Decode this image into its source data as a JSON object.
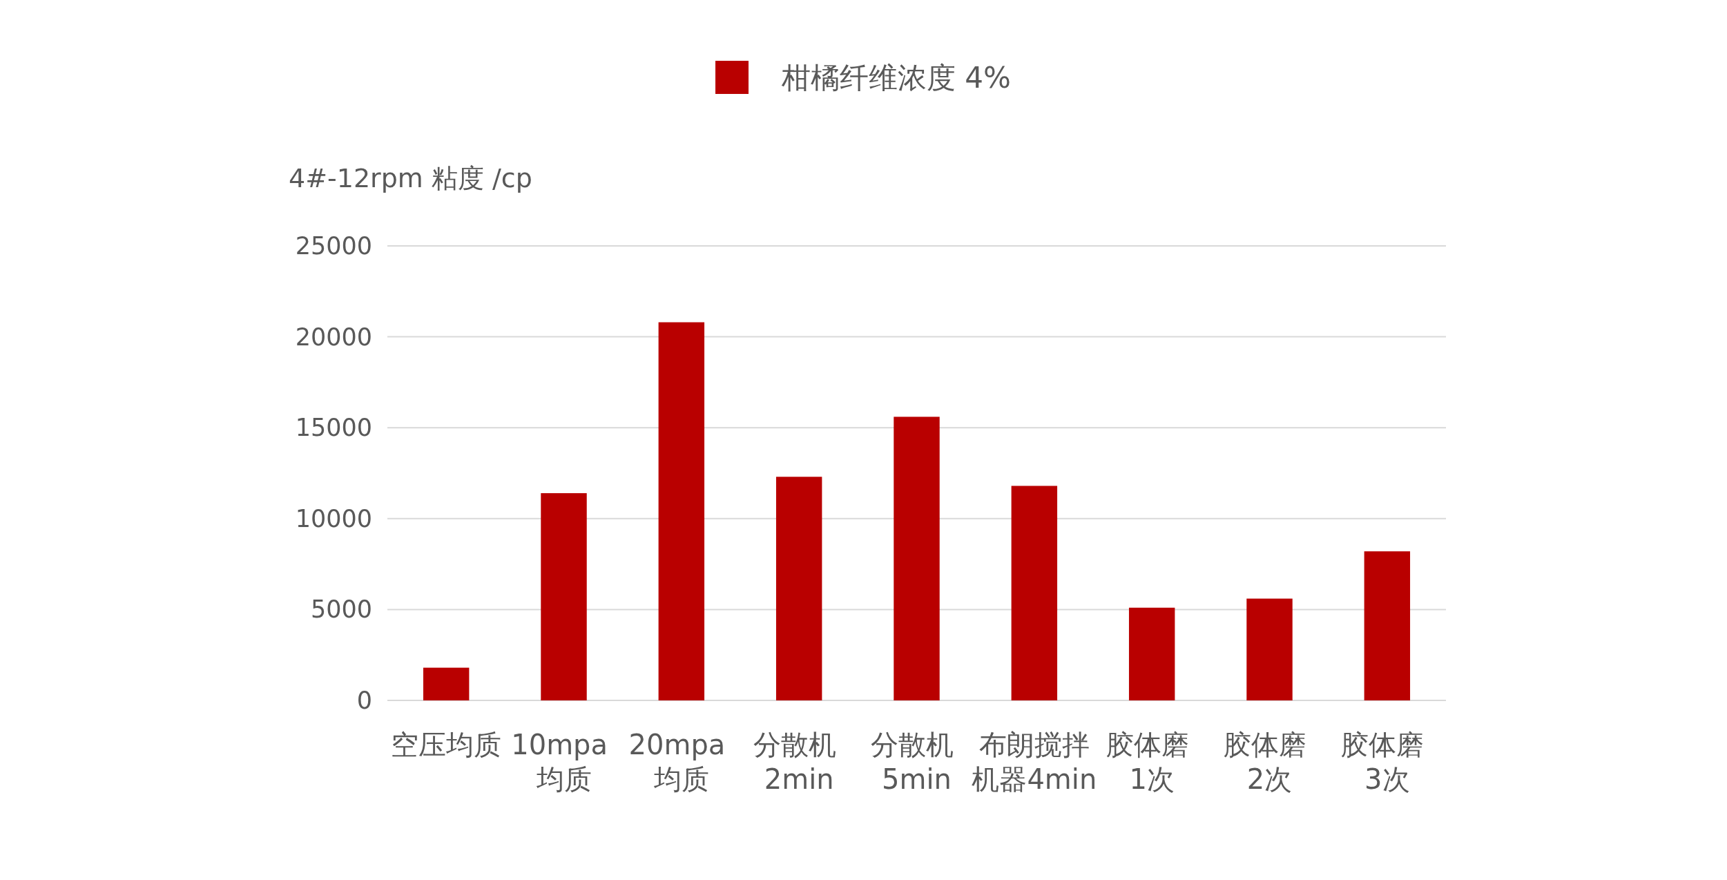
{
  "chart_data": {
    "type": "bar",
    "ylabel": "4#-12rpm 粘度 /cp",
    "legend": "top",
    "grid": "y",
    "categories": [
      "空压均质",
      "10mpa 均质",
      "20mpa 均质",
      "分散机 2min",
      "分散机 5min",
      "布朗搅拌机器4min",
      "胶体磨 1次",
      "胶体磨 2次",
      "胶体磨 3次"
    ],
    "series": [
      {
        "name": "柑橘纤维浓度 4%",
        "color": "#b90000",
        "values": [
          1800,
          11400,
          20800,
          12300,
          15600,
          11800,
          5100,
          5600,
          8200
        ]
      }
    ],
    "ylim": [
      0,
      25000
    ],
    "yticks": [
      0,
      5000,
      10000,
      15000,
      20000,
      25000
    ]
  }
}
